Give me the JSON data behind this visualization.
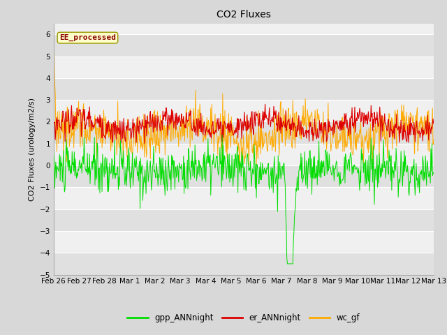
{
  "title": "CO2 Fluxes",
  "ylabel": "CO2 Fluxes (urology/m2/s)",
  "ylim": [
    -5.0,
    6.5
  ],
  "yticks": [
    -5.0,
    -4.0,
    -3.0,
    -2.0,
    -1.0,
    0.0,
    1.0,
    2.0,
    3.0,
    4.0,
    5.0,
    6.0
  ],
  "annotation_text": "EE_processed",
  "annotation_color": "#880000",
  "annotation_bg": "#ffffcc",
  "annotation_border": "#999900",
  "gpp_color": "#00dd00",
  "er_color": "#dd0000",
  "wc_color": "#ffaa00",
  "background_color": "#d8d8d8",
  "plot_bg_light": "#f0f0f0",
  "plot_bg_dark": "#e0e0e0",
  "n_points": 700,
  "x_start": 0,
  "x_end": 15.0,
  "xtick_labels": [
    "Feb 26",
    "Feb 27",
    "Feb 28",
    "Mar 1",
    "Mar 2",
    "Mar 3",
    "Mar 4",
    "Mar 5",
    "Mar 6",
    "Mar 7",
    "Mar 8",
    "Mar 9",
    "Mar 10",
    "Mar 11",
    "Mar 12",
    "Mar 13"
  ],
  "xtick_positions": [
    0,
    1,
    2,
    3,
    4,
    5,
    6,
    7,
    8,
    9,
    10,
    11,
    12,
    13,
    14,
    15
  ],
  "legend_labels": [
    "gpp_ANNnight",
    "er_ANNnight",
    "wc_gf"
  ],
  "legend_colors": [
    "#00dd00",
    "#dd0000",
    "#ffaa00"
  ],
  "title_fontsize": 10,
  "label_fontsize": 8,
  "tick_fontsize": 7.5
}
